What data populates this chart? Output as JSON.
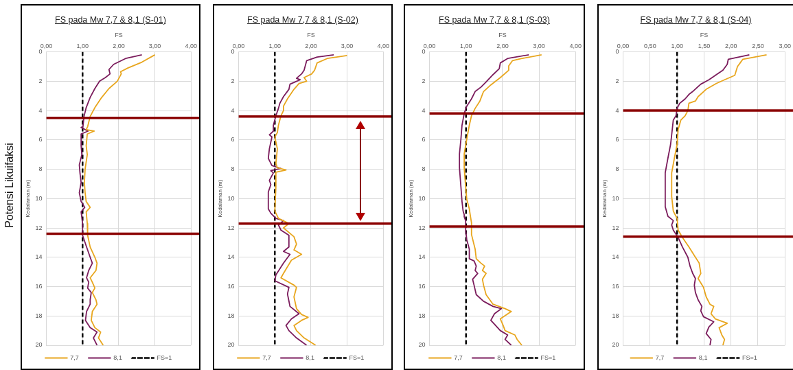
{
  "chart_data": [
    {
      "type": "line",
      "title": "FS pada Mw 7,7 & 8,1 (S-01)",
      "xlabel": "FS",
      "ylabel": "Kedalaman (m)",
      "xlim": [
        0,
        4
      ],
      "xticks": [
        {
          "value": 0,
          "label": "0,00"
        },
        {
          "value": 1,
          "label": "1,00"
        },
        {
          "value": 2,
          "label": "2,00"
        },
        {
          "value": 3,
          "label": "3,00"
        },
        {
          "value": 4,
          "label": "4,00"
        }
      ],
      "ylim": [
        20,
        0
      ],
      "yticks": [
        0,
        2,
        4,
        6,
        8,
        10,
        12,
        14,
        16,
        18,
        20
      ],
      "grid": true,
      "legend": "bottom",
      "marker": "none",
      "annotations": [
        "Potensi Likuifaksi"
      ],
      "ref_lines": [
        {
          "axis": "y",
          "value": 4.5,
          "color": "#8b0000"
        },
        {
          "axis": "y",
          "value": 12.4,
          "color": "#8b0000"
        }
      ],
      "series": [
        {
          "name": "7,7",
          "color": "#e8a61e",
          "x": [
            3.0,
            2.64,
            2.25,
            2.05,
            2.07,
            1.96,
            1.73,
            1.53,
            1.34,
            1.21,
            1.14,
            1.1,
            1.32,
            1.13,
            1.1,
            1.13,
            1.07,
            1.05,
            1.07,
            1.1,
            1.21,
            1.1,
            1.13,
            1.14,
            1.21,
            1.34,
            1.4,
            1.37,
            1.21,
            1.27,
            1.34,
            1.27,
            1.37,
            1.4,
            1.27,
            1.24,
            1.34,
            1.5,
            1.44,
            1.57
          ],
          "values": [
            0.2,
            0.7,
            1.1,
            1.35,
            1.5,
            2.0,
            2.5,
            3.1,
            3.8,
            4.4,
            5.1,
            5.3,
            5.4,
            5.6,
            6.4,
            7.0,
            8.0,
            8.9,
            9.6,
            10.2,
            10.6,
            10.9,
            11.7,
            12.5,
            13.3,
            14.0,
            14.4,
            14.9,
            15.4,
            15.7,
            16.1,
            16.4,
            16.9,
            17.2,
            17.7,
            18.3,
            18.8,
            19.1,
            19.5,
            20
          ]
        },
        {
          "name": "8,1",
          "color": "#7b1c5c",
          "x": [
            2.64,
            2.19,
            1.86,
            1.73,
            1.76,
            1.63,
            1.47,
            1.34,
            1.21,
            1.1,
            1.04,
            1.01,
            0.96,
            1.15,
            0.96,
            0.96,
            0.98,
            0.91,
            0.93,
            0.96,
            0.91,
            0.96,
            1.06,
            0.96,
            1.0,
            1.0,
            1.11,
            1.21,
            1.27,
            1.17,
            1.11,
            1.17,
            1.14,
            1.24,
            1.21,
            1.21,
            1.11,
            1.08,
            1.21,
            1.4,
            1.3,
            1.4
          ],
          "values": [
            0.2,
            0.45,
            0.85,
            1.2,
            1.5,
            1.75,
            2.0,
            2.5,
            3.1,
            3.8,
            4.4,
            5.1,
            5.15,
            5.4,
            5.6,
            6.4,
            7.0,
            7.7,
            8.3,
            8.9,
            9.6,
            10.2,
            10.6,
            10.9,
            11.7,
            12.5,
            13.3,
            14.0,
            14.4,
            14.9,
            15.4,
            15.7,
            16.1,
            16.4,
            16.9,
            17.2,
            17.7,
            18.3,
            18.8,
            19.1,
            19.5,
            20
          ]
        },
        {
          "name": "FS=1",
          "color": "#000000",
          "line_style": "dashed",
          "x": [
            1,
            1
          ],
          "values": [
            0,
            20
          ]
        }
      ]
    },
    {
      "type": "line",
      "title": "FS pada Mw 7,7 & 8,1 (S-02)",
      "xlabel": "FS",
      "ylabel": "Kedalaman (m)",
      "xlim": [
        0,
        4
      ],
      "xticks": [
        {
          "value": 0,
          "label": "0,00"
        },
        {
          "value": 1,
          "label": "1,00"
        },
        {
          "value": 2,
          "label": "2,00"
        },
        {
          "value": 3,
          "label": "3,00"
        },
        {
          "value": 4,
          "label": "4,00"
        }
      ],
      "ylim": [
        20,
        0
      ],
      "yticks": [
        0,
        2,
        4,
        6,
        8,
        10,
        12,
        14,
        16,
        18,
        20
      ],
      "grid": true,
      "legend": "bottom",
      "marker": "none",
      "ref_lines": [
        {
          "axis": "y",
          "value": 4.4,
          "color": "#8b0000"
        },
        {
          "axis": "y",
          "value": 11.7,
          "color": "#8b0000"
        }
      ],
      "series": [
        {
          "name": "7,7",
          "color": "#e8a61e",
          "x": [
            3.0,
            2.45,
            2.17,
            2.1,
            2.02,
            1.81,
            1.88,
            1.67,
            1.53,
            1.35,
            1.24,
            1.24,
            1.17,
            1.1,
            1.07,
            1.0,
            1.07,
            1.03,
            1.07,
            1.31,
            1.03,
            1.03,
            1.0,
            1.1,
            1.39,
            1.24,
            1.53,
            1.6,
            1.53,
            1.74,
            1.46,
            1.24,
            1.17,
            1.53,
            1.6,
            1.53,
            1.6,
            1.74,
            1.92,
            1.74,
            1.53,
            1.6,
            1.81,
            2.13
          ],
          "values": [
            0.25,
            0.45,
            0.75,
            1.25,
            1.5,
            1.75,
            2.0,
            2.15,
            2.55,
            3.2,
            3.7,
            4.0,
            4.35,
            5.0,
            5.5,
            5.8,
            6.6,
            7.6,
            7.9,
            8.05,
            8.2,
            9.2,
            10.85,
            11.35,
            11.7,
            12.0,
            12.6,
            13.1,
            13.5,
            13.8,
            14.2,
            15.1,
            15.4,
            15.9,
            16.05,
            16.7,
            17.5,
            17.9,
            18.1,
            18.3,
            18.65,
            19.0,
            19.5,
            20
          ]
        },
        {
          "name": "8,1",
          "color": "#7b1c5c",
          "x": [
            2.63,
            2.17,
            1.88,
            1.81,
            1.74,
            1.6,
            1.7,
            1.56,
            1.42,
            1.39,
            1.24,
            1.14,
            1.1,
            1.03,
            0.96,
            0.96,
            0.85,
            0.92,
            0.85,
            0.82,
            0.92,
            1.17,
            0.89,
            0.96,
            0.85,
            0.89,
            0.82,
            0.82,
            0.89,
            1.03,
            1.24,
            1.1,
            1.17,
            1.39,
            1.39,
            1.24,
            1.42,
            1.24,
            1.03,
            1.0,
            1.39,
            1.35,
            1.42,
            1.67,
            1.46,
            1.31,
            1.39,
            1.6,
            1.88
          ],
          "values": [
            0.2,
            0.35,
            0.6,
            1.25,
            1.5,
            1.8,
            1.9,
            2.05,
            2.2,
            2.55,
            3.05,
            3.5,
            3.85,
            4.35,
            5.0,
            5.4,
            5.65,
            5.8,
            6.6,
            7.25,
            7.75,
            7.95,
            8.1,
            8.25,
            8.75,
            9.05,
            9.55,
            10.7,
            11.0,
            11.35,
            11.5,
            11.8,
            12.15,
            12.5,
            13.3,
            13.6,
            13.8,
            14.4,
            15.2,
            15.6,
            16.05,
            16.5,
            17.35,
            17.85,
            18.2,
            18.65,
            19.0,
            19.5,
            20
          ]
        },
        {
          "name": "FS=1",
          "color": "#000000",
          "line_style": "dashed",
          "x": [
            1,
            1
          ],
          "values": [
            0,
            20
          ]
        }
      ]
    },
    {
      "type": "line",
      "title": "FS pada Mw 7,7 & 8,1 (S-03)",
      "xlabel": "FS",
      "ylabel": "Kedalaman (m)",
      "xlim": [
        0,
        4
      ],
      "xticks": [
        {
          "value": 0,
          "label": "0,00"
        },
        {
          "value": 1,
          "label": "1,00"
        },
        {
          "value": 2,
          "label": "2,00"
        },
        {
          "value": 3,
          "label": "3,00"
        },
        {
          "value": 4,
          "label": "4,00"
        }
      ],
      "ylim": [
        20,
        0
      ],
      "yticks": [
        0,
        2,
        4,
        6,
        8,
        10,
        12,
        14,
        16,
        18,
        20
      ],
      "grid": true,
      "legend": "bottom",
      "marker": "none",
      "ref_lines": [
        {
          "axis": "y",
          "value": 4.2,
          "color": "#8b0000"
        },
        {
          "axis": "y",
          "value": 11.9,
          "color": "#8b0000"
        }
      ],
      "series": [
        {
          "name": "7,7",
          "color": "#e8a61e",
          "x": [
            3.07,
            2.53,
            2.27,
            2.17,
            2.17,
            1.94,
            1.68,
            1.48,
            1.38,
            1.25,
            1.15,
            1.09,
            1.02,
            0.95,
            0.95,
            0.99,
            1.02,
            1.09,
            1.12,
            1.15,
            1.15,
            1.25,
            1.28,
            1.41,
            1.51,
            1.45,
            1.55,
            1.45,
            1.48,
            1.55,
            1.74,
            2.07,
            2.24,
            1.94,
            2.01,
            2.07,
            2.34,
            2.4,
            2.53
          ],
          "values": [
            0.2,
            0.45,
            0.6,
            0.95,
            1.25,
            1.75,
            2.25,
            2.7,
            3.35,
            3.85,
            4.35,
            5.0,
            5.95,
            6.95,
            7.9,
            9.2,
            10.05,
            10.7,
            11.2,
            11.65,
            12.45,
            13.45,
            14.1,
            14.4,
            14.6,
            14.9,
            15.1,
            15.5,
            15.9,
            16.55,
            17.2,
            17.5,
            17.7,
            18.2,
            18.6,
            19.0,
            19.3,
            19.6,
            20
          ]
        },
        {
          "name": "8,1",
          "color": "#7b1c5c",
          "x": [
            2.72,
            2.14,
            1.94,
            1.91,
            1.74,
            1.55,
            1.41,
            1.25,
            1.15,
            1.02,
            0.95,
            0.89,
            0.86,
            0.82,
            0.82,
            0.86,
            0.89,
            0.92,
            0.95,
            0.95,
            0.99,
            0.99,
            1.02,
            1.09,
            1.09,
            1.22,
            1.28,
            1.25,
            1.32,
            1.18,
            1.22,
            1.28,
            1.48,
            1.74,
            1.97,
            1.78,
            1.68,
            1.81,
            1.94,
            2.14,
            2.07,
            2.24
          ],
          "values": [
            0.2,
            0.45,
            0.75,
            1.15,
            1.55,
            2.05,
            2.4,
            2.7,
            3.2,
            3.7,
            4.2,
            5.0,
            5.95,
            6.95,
            7.9,
            9.2,
            10.2,
            10.85,
            11.1,
            11.25,
            11.5,
            12.15,
            12.8,
            13.45,
            14.1,
            14.25,
            14.6,
            14.9,
            15.1,
            15.5,
            15.9,
            16.55,
            17.0,
            17.35,
            17.5,
            17.85,
            18.3,
            18.65,
            19.0,
            19.3,
            19.6,
            20
          ]
        },
        {
          "name": "FS=1",
          "color": "#000000",
          "line_style": "dashed",
          "x": [
            1,
            1
          ],
          "values": [
            0,
            20
          ]
        }
      ]
    },
    {
      "type": "line",
      "title": "FS pada Mw 7,7 & 8,1 (S-04)",
      "xlabel": "FS",
      "ylabel": "Kedalaman (m)",
      "xlim": [
        0,
        3
      ],
      "xticks": [
        {
          "value": 0,
          "label": "0,00"
        },
        {
          "value": 0.5,
          "label": "0,50"
        },
        {
          "value": 1,
          "label": "1,00"
        },
        {
          "value": 1.5,
          "label": "1,50"
        },
        {
          "value": 2,
          "label": "2,00"
        },
        {
          "value": 2.5,
          "label": "2,50"
        },
        {
          "value": 3,
          "label": "3,00"
        }
      ],
      "ylim": [
        20,
        0
      ],
      "yticks": [
        0,
        2,
        4,
        6,
        8,
        10,
        12,
        14,
        16,
        18,
        20
      ],
      "grid": true,
      "legend": "bottom",
      "marker": "none",
      "ref_lines": [
        {
          "axis": "y",
          "value": 4.0,
          "color": "#8b0000"
        },
        {
          "axis": "y",
          "value": 12.6,
          "color": "#8b0000"
        }
      ],
      "series": [
        {
          "name": "7,7",
          "color": "#e8a61e",
          "x": [
            2.66,
            2.22,
            2.17,
            2.12,
            2.07,
            1.88,
            1.73,
            1.54,
            1.39,
            1.34,
            1.22,
            1.2,
            1.15,
            1.07,
            1.02,
            1.0,
            0.95,
            0.9,
            0.9,
            0.93,
            1.0,
            1.02,
            1.1,
            1.22,
            1.34,
            1.41,
            1.44,
            1.39,
            1.49,
            1.54,
            1.61,
            1.68,
            1.63,
            1.71,
            1.93,
            1.78,
            1.83,
            1.88,
            1.85
          ],
          "values": [
            0.2,
            0.5,
            0.75,
            1.0,
            1.6,
            1.9,
            2.15,
            2.55,
            3.05,
            3.35,
            3.5,
            4.0,
            4.35,
            4.65,
            5.3,
            6.3,
            7.25,
            8.25,
            9.85,
            10.85,
            11.35,
            12.15,
            12.65,
            13.3,
            14.0,
            14.4,
            15.1,
            15.45,
            16.05,
            16.7,
            17.2,
            17.35,
            17.85,
            18.2,
            18.5,
            18.8,
            19.3,
            19.6,
            20
          ]
        },
        {
          "name": "8,1",
          "color": "#7b1c5c",
          "x": [
            2.34,
            1.95,
            1.93,
            1.85,
            1.71,
            1.59,
            1.44,
            1.29,
            1.22,
            1.15,
            1.1,
            1.05,
            1.0,
            0.98,
            0.93,
            0.9,
            0.88,
            0.83,
            0.78,
            0.78,
            0.83,
            0.93,
            0.9,
            0.93,
            1.02,
            1.1,
            1.2,
            1.24,
            1.29,
            1.34,
            1.32,
            1.34,
            1.39,
            1.46,
            1.44,
            1.49,
            1.68,
            1.59,
            1.54,
            1.63,
            1.61
          ],
          "values": [
            0.2,
            0.5,
            0.85,
            1.25,
            1.6,
            1.9,
            2.2,
            2.7,
            2.9,
            3.2,
            3.35,
            3.5,
            3.85,
            4.35,
            4.65,
            5.65,
            6.3,
            7.25,
            8.25,
            10.55,
            11.2,
            11.5,
            11.8,
            12.15,
            12.65,
            13.3,
            14.0,
            14.6,
            15.1,
            15.45,
            15.9,
            16.4,
            16.9,
            17.35,
            17.65,
            18.05,
            18.4,
            18.75,
            19.2,
            19.6,
            20
          ]
        },
        {
          "name": "FS=1",
          "color": "#000000",
          "line_style": "dashed",
          "x": [
            1,
            1
          ],
          "values": [
            0,
            20
          ]
        }
      ]
    }
  ]
}
